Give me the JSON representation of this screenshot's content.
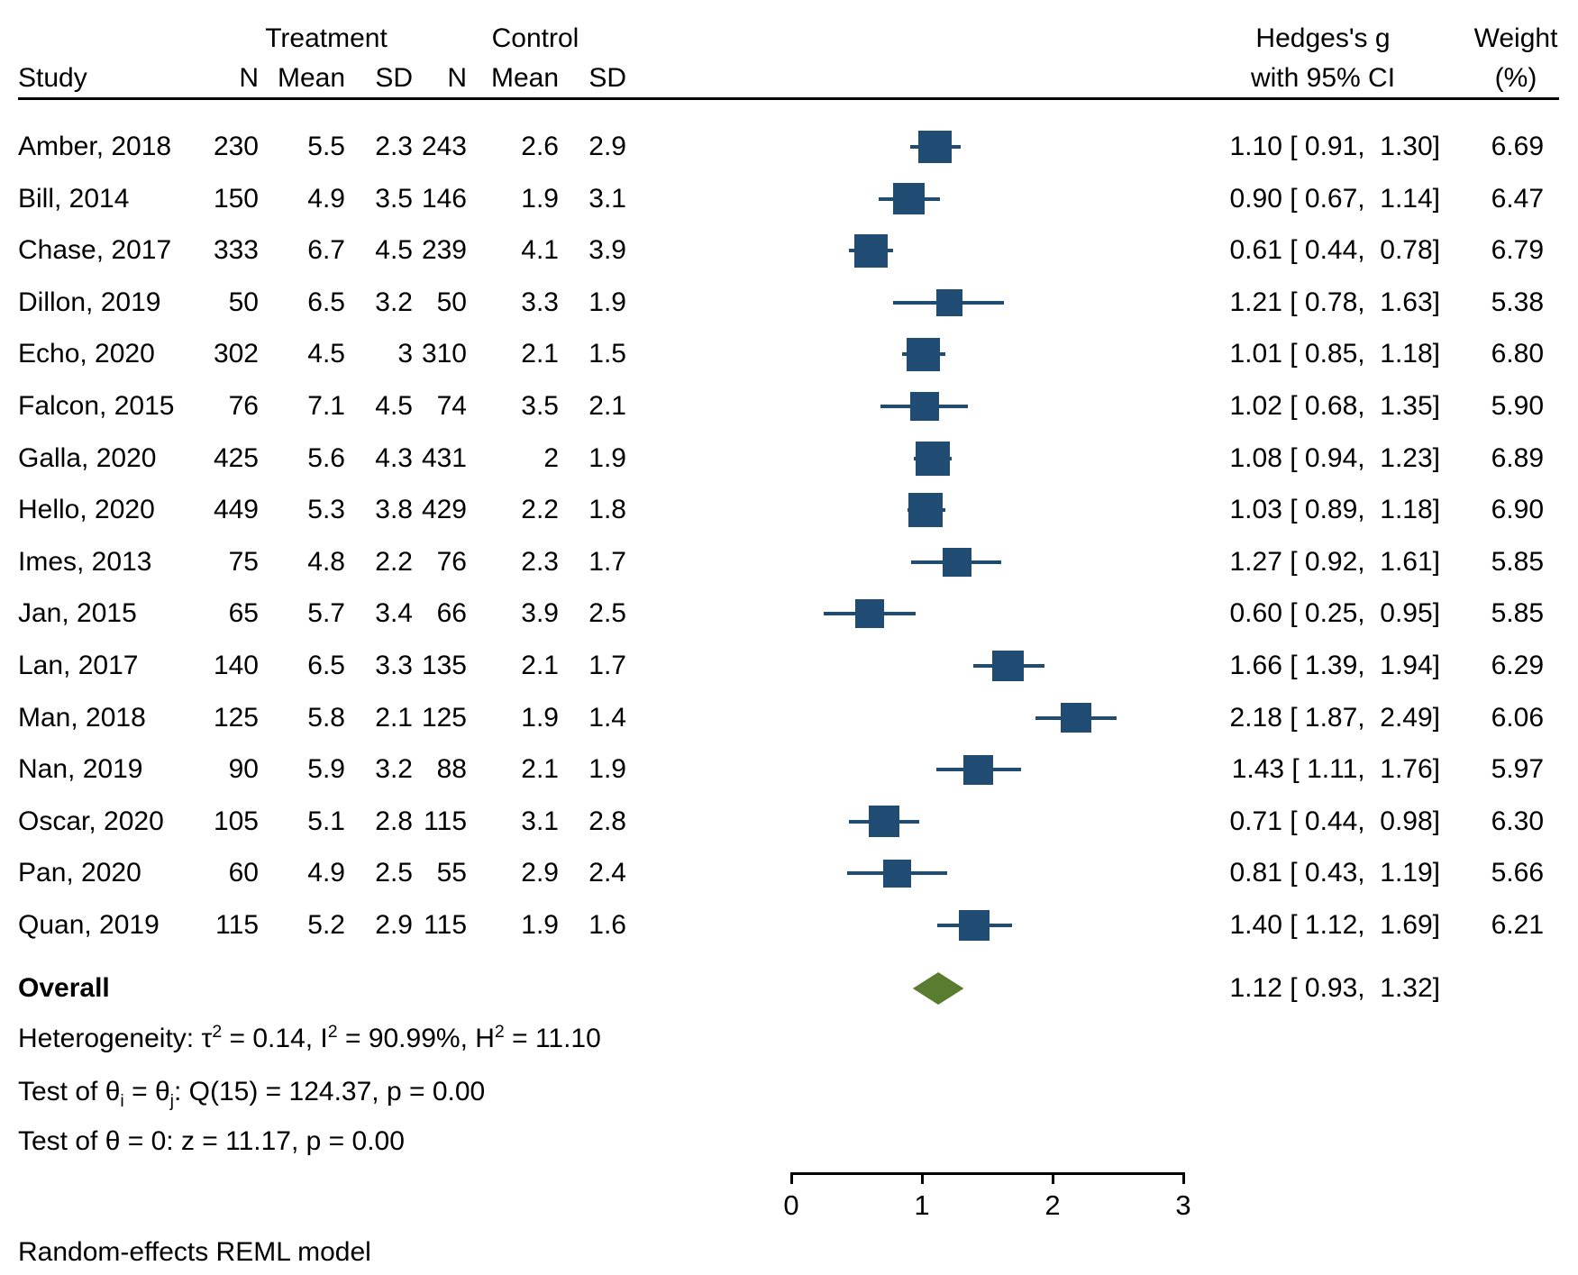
{
  "chart_data": {
    "type": "forest",
    "title": "",
    "effect_measure": "Hedges's g",
    "x_axis": {
      "ticks": [
        0,
        1,
        2,
        3
      ],
      "range": [
        0,
        3
      ]
    },
    "columns": {
      "study": "Study",
      "group1": "Treatment",
      "group2": "Control",
      "n": "N",
      "mean": "Mean",
      "sd": "SD",
      "es_line1": "Hedges's g",
      "es_line2": "with 95% CI",
      "weight_line1": "Weight",
      "weight_line2": "(%)"
    },
    "studies": [
      {
        "label": "Amber, 2018",
        "t_n": "230",
        "t_mean": "5.5",
        "t_sd": "2.3",
        "c_n": "243",
        "c_mean": "2.6",
        "c_sd": "2.9",
        "es": 1.1,
        "ci_lo": 0.91,
        "ci_hi": 1.3,
        "es_text": "1.10 [ 0.91,  1.30]",
        "weight": 6.69,
        "weight_text": "6.69"
      },
      {
        "label": "Bill, 2014",
        "t_n": "150",
        "t_mean": "4.9",
        "t_sd": "3.5",
        "c_n": "146",
        "c_mean": "1.9",
        "c_sd": "3.1",
        "es": 0.9,
        "ci_lo": 0.67,
        "ci_hi": 1.14,
        "es_text": "0.90 [ 0.67,  1.14]",
        "weight": 6.47,
        "weight_text": "6.47"
      },
      {
        "label": "Chase, 2017",
        "t_n": "333",
        "t_mean": "6.7",
        "t_sd": "4.5",
        "c_n": "239",
        "c_mean": "4.1",
        "c_sd": "3.9",
        "es": 0.61,
        "ci_lo": 0.44,
        "ci_hi": 0.78,
        "es_text": "0.61 [ 0.44,  0.78]",
        "weight": 6.79,
        "weight_text": "6.79"
      },
      {
        "label": "Dillon, 2019",
        "t_n": "50",
        "t_mean": "6.5",
        "t_sd": "3.2",
        "c_n": "50",
        "c_mean": "3.3",
        "c_sd": "1.9",
        "es": 1.21,
        "ci_lo": 0.78,
        "ci_hi": 1.63,
        "es_text": "1.21 [ 0.78,  1.63]",
        "weight": 5.38,
        "weight_text": "5.38"
      },
      {
        "label": "Echo, 2020",
        "t_n": "302",
        "t_mean": "4.5",
        "t_sd": "3",
        "c_n": "310",
        "c_mean": "2.1",
        "c_sd": "1.5",
        "es": 1.01,
        "ci_lo": 0.85,
        "ci_hi": 1.18,
        "es_text": "1.01 [ 0.85,  1.18]",
        "weight": 6.8,
        "weight_text": "6.80"
      },
      {
        "label": "Falcon, 2015",
        "t_n": "76",
        "t_mean": "7.1",
        "t_sd": "4.5",
        "c_n": "74",
        "c_mean": "3.5",
        "c_sd": "2.1",
        "es": 1.02,
        "ci_lo": 0.68,
        "ci_hi": 1.35,
        "es_text": "1.02 [ 0.68,  1.35]",
        "weight": 5.9,
        "weight_text": "5.90"
      },
      {
        "label": "Galla, 2020",
        "t_n": "425",
        "t_mean": "5.6",
        "t_sd": "4.3",
        "c_n": "431",
        "c_mean": "2",
        "c_sd": "1.9",
        "es": 1.08,
        "ci_lo": 0.94,
        "ci_hi": 1.23,
        "es_text": "1.08 [ 0.94,  1.23]",
        "weight": 6.89,
        "weight_text": "6.89"
      },
      {
        "label": "Hello, 2020",
        "t_n": "449",
        "t_mean": "5.3",
        "t_sd": "3.8",
        "c_n": "429",
        "c_mean": "2.2",
        "c_sd": "1.8",
        "es": 1.03,
        "ci_lo": 0.89,
        "ci_hi": 1.18,
        "es_text": "1.03 [ 0.89,  1.18]",
        "weight": 6.9,
        "weight_text": "6.90"
      },
      {
        "label": "Imes, 2013",
        "t_n": "75",
        "t_mean": "4.8",
        "t_sd": "2.2",
        "c_n": "76",
        "c_mean": "2.3",
        "c_sd": "1.7",
        "es": 1.27,
        "ci_lo": 0.92,
        "ci_hi": 1.61,
        "es_text": "1.27 [ 0.92,  1.61]",
        "weight": 5.85,
        "weight_text": "5.85"
      },
      {
        "label": "Jan, 2015",
        "t_n": "65",
        "t_mean": "5.7",
        "t_sd": "3.4",
        "c_n": "66",
        "c_mean": "3.9",
        "c_sd": "2.5",
        "es": 0.6,
        "ci_lo": 0.25,
        "ci_hi": 0.95,
        "es_text": "0.60 [ 0.25,  0.95]",
        "weight": 5.85,
        "weight_text": "5.85"
      },
      {
        "label": "Lan, 2017",
        "t_n": "140",
        "t_mean": "6.5",
        "t_sd": "3.3",
        "c_n": "135",
        "c_mean": "2.1",
        "c_sd": "1.7",
        "es": 1.66,
        "ci_lo": 1.39,
        "ci_hi": 1.94,
        "es_text": "1.66 [ 1.39,  1.94]",
        "weight": 6.29,
        "weight_text": "6.29"
      },
      {
        "label": "Man, 2018",
        "t_n": "125",
        "t_mean": "5.8",
        "t_sd": "2.1",
        "c_n": "125",
        "c_mean": "1.9",
        "c_sd": "1.4",
        "es": 2.18,
        "ci_lo": 1.87,
        "ci_hi": 2.49,
        "es_text": "2.18 [ 1.87,  2.49]",
        "weight": 6.06,
        "weight_text": "6.06"
      },
      {
        "label": "Nan, 2019",
        "t_n": "90",
        "t_mean": "5.9",
        "t_sd": "3.2",
        "c_n": "88",
        "c_mean": "2.1",
        "c_sd": "1.9",
        "es": 1.43,
        "ci_lo": 1.11,
        "ci_hi": 1.76,
        "es_text": "1.43 [ 1.11,  1.76]",
        "weight": 5.97,
        "weight_text": "5.97"
      },
      {
        "label": "Oscar, 2020",
        "t_n": "105",
        "t_mean": "5.1",
        "t_sd": "2.8",
        "c_n": "115",
        "c_mean": "3.1",
        "c_sd": "2.8",
        "es": 0.71,
        "ci_lo": 0.44,
        "ci_hi": 0.98,
        "es_text": "0.71 [ 0.44,  0.98]",
        "weight": 6.3,
        "weight_text": "6.30"
      },
      {
        "label": "Pan, 2020",
        "t_n": "60",
        "t_mean": "4.9",
        "t_sd": "2.5",
        "c_n": "55",
        "c_mean": "2.9",
        "c_sd": "2.4",
        "es": 0.81,
        "ci_lo": 0.43,
        "ci_hi": 1.19,
        "es_text": "0.81 [ 0.43,  1.19]",
        "weight": 5.66,
        "weight_text": "5.66"
      },
      {
        "label": "Quan, 2019",
        "t_n": "115",
        "t_mean": "5.2",
        "t_sd": "2.9",
        "c_n": "115",
        "c_mean": "1.9",
        "c_sd": "1.6",
        "es": 1.4,
        "ci_lo": 1.12,
        "ci_hi": 1.69,
        "es_text": "1.40 [ 1.12,  1.69]",
        "weight": 6.21,
        "weight_text": "6.21"
      }
    ],
    "overall": {
      "label": "Overall",
      "es": 1.12,
      "ci_lo": 0.93,
      "ci_hi": 1.32,
      "es_text": "1.12 [ 0.93,  1.32]"
    },
    "legend_position": "none",
    "grid": false
  },
  "stats": {
    "heterogeneity": {
      "p1": "Heterogeneity: τ",
      "s1": "2",
      "p2": " = 0.14, I",
      "s2": "2",
      "p3": " = 90.99%, H",
      "s3": "2",
      "p4": " = 11.10"
    },
    "test_q": {
      "p1": "Test of θ",
      "sub1": "i",
      "p2": " = θ",
      "sub2": "j",
      "p3": ": Q(15) = 124.37, p = 0.00"
    },
    "test_z": "Test of θ = 0: z = 11.17, p = 0.00"
  },
  "footnote": "Random-effects REML model",
  "colors": {
    "marker": "#204c73",
    "diamond": "#5a7c31",
    "text": "#000000"
  }
}
